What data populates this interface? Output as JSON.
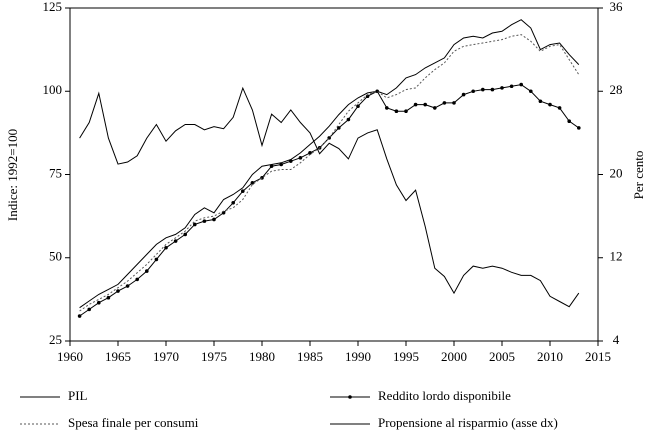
{
  "chart_data": {
    "type": "line",
    "y_label": "Indice: 1992=100",
    "y2_label": "Per cento",
    "x": [
      1961,
      1962,
      1963,
      1964,
      1965,
      1966,
      1967,
      1968,
      1969,
      1970,
      1971,
      1972,
      1973,
      1974,
      1975,
      1976,
      1977,
      1978,
      1979,
      1980,
      1981,
      1982,
      1983,
      1984,
      1985,
      1986,
      1987,
      1988,
      1989,
      1990,
      1991,
      1992,
      1993,
      1994,
      1995,
      1996,
      1997,
      1998,
      1999,
      2000,
      2001,
      2002,
      2003,
      2004,
      2005,
      2006,
      2007,
      2008,
      2009,
      2010,
      2011,
      2012,
      2013
    ],
    "xlim": [
      1960,
      2015
    ],
    "xticks": [
      1960,
      1965,
      1970,
      1975,
      1980,
      1985,
      1990,
      1995,
      2000,
      2005,
      2010,
      2015
    ],
    "ylim": [
      25,
      125
    ],
    "yticks": [
      25,
      50,
      75,
      100,
      125
    ],
    "y2lim": [
      4,
      36
    ],
    "y2ticks": [
      4,
      12,
      20,
      28,
      36
    ],
    "series": [
      {
        "name": "PIL",
        "color": "#000000",
        "dash": "none",
        "marker": false,
        "values": [
          35,
          37,
          39,
          40.5,
          42,
          45,
          48,
          51,
          54,
          56,
          57,
          59,
          63,
          65,
          63.5,
          67.5,
          69,
          71,
          75,
          77.5,
          78,
          78.5,
          79.5,
          81.5,
          84,
          86.5,
          89.5,
          93,
          96,
          98,
          99.5,
          100,
          99,
          101,
          104,
          105,
          107,
          108.5,
          110,
          114,
          116,
          116.5,
          116,
          117.5,
          118,
          120,
          121.5,
          119,
          112.5,
          114,
          114.5,
          111,
          108
        ]
      },
      {
        "name": "Reddito lordo disponibile",
        "color": "#000000",
        "dash": "none",
        "marker": true,
        "values": [
          32.5,
          34.5,
          36.5,
          38,
          40,
          41.5,
          43.5,
          46,
          49.5,
          53,
          55,
          57,
          60,
          61,
          61.5,
          63.5,
          66.5,
          70,
          72.5,
          74,
          77.5,
          78,
          79,
          80,
          81.5,
          83,
          86,
          89,
          91.5,
          95.5,
          98.5,
          100,
          95,
          94,
          94,
          96,
          96,
          95,
          96.5,
          96.5,
          99,
          100,
          100.5,
          100.5,
          101,
          101.5,
          102,
          100,
          97,
          96,
          95,
          91,
          89
        ]
      },
      {
        "name": "Spesa finale per consumi",
        "color": "#555555",
        "dash": "2 2",
        "marker": false,
        "values": [
          34,
          36,
          37.5,
          39,
          41,
          43,
          45.5,
          48,
          51,
          54,
          56,
          58,
          61,
          62,
          62.5,
          64,
          65,
          67.5,
          72,
          74,
          76,
          76.5,
          76.5,
          78.5,
          81,
          83,
          86,
          90,
          94,
          96.5,
          99,
          100,
          98,
          99,
          100.5,
          101,
          104,
          106.5,
          108.5,
          112,
          113.5,
          114,
          114.5,
          115,
          115.5,
          116.5,
          117,
          115,
          112,
          113.5,
          114,
          109.5,
          105
        ]
      },
      {
        "name": "Propensione al risparmio (asse dx)",
        "color": "#000000",
        "dash": "none",
        "marker": false,
        "axis": "y2",
        "values": [
          23.5,
          25,
          27.8,
          23.5,
          21,
          21.2,
          21.8,
          23.5,
          24.8,
          23.2,
          24.2,
          24.8,
          24.8,
          24.3,
          24.6,
          24.4,
          25.5,
          28.3,
          26.2,
          22.8,
          25.8,
          25,
          26.2,
          25,
          24,
          22,
          23,
          22.5,
          21.5,
          23.5,
          24,
          24.3,
          21.5,
          19,
          17.5,
          18.5,
          15,
          11,
          10.2,
          8.6,
          10.3,
          11.2,
          11,
          11.2,
          11,
          10.6,
          10.3,
          10.3,
          9.8,
          8.3,
          7.8,
          7.3,
          8.6
        ]
      }
    ]
  }
}
